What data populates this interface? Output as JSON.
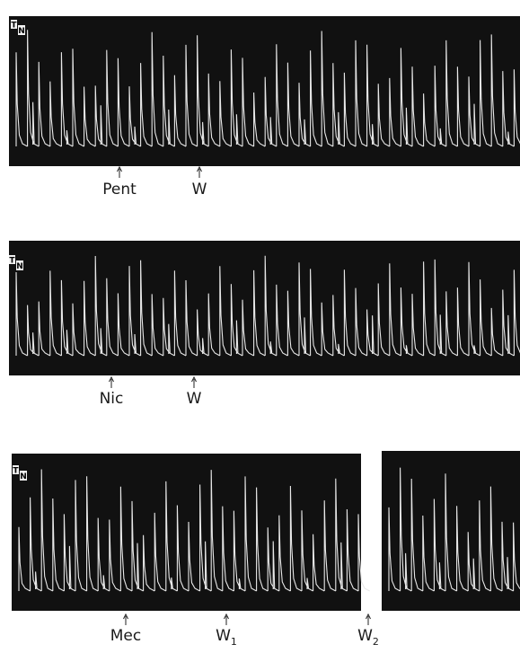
{
  "panels": [
    {
      "trace_labels": [
        "T",
        "N"
      ],
      "markers": [
        {
          "text": "Pent"
        },
        {
          "text": "W"
        }
      ]
    },
    {
      "trace_labels": [
        "T",
        "N"
      ],
      "markers": [
        {
          "text": "Nic"
        },
        {
          "text": "W"
        }
      ]
    },
    {
      "trace_labels": [
        "T",
        "N"
      ],
      "markers": [
        {
          "text": "Mec"
        },
        {
          "text": "W",
          "subscript": "1"
        },
        {
          "text": "W",
          "subscript": "2"
        }
      ]
    }
  ]
}
